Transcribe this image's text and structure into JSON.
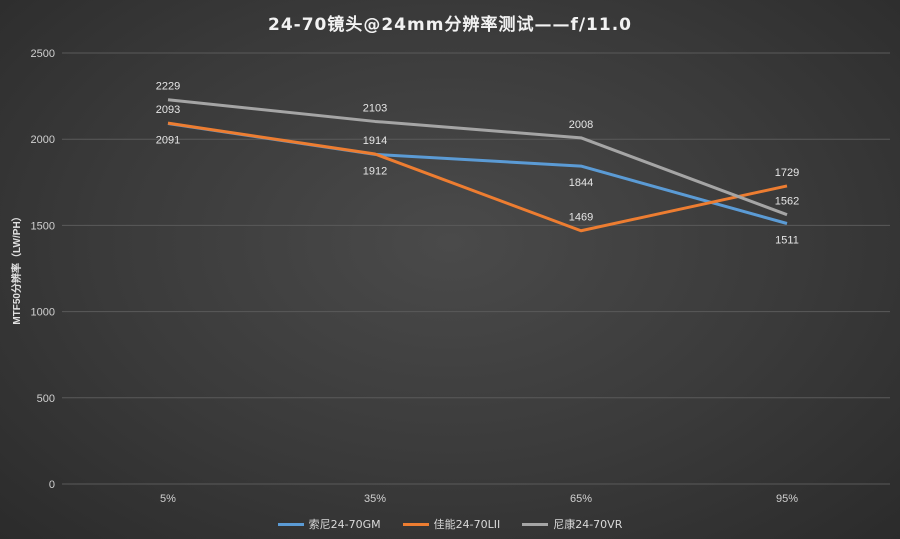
{
  "chart_data": {
    "type": "line",
    "title": "24-70镜头@24mm分辨率测试——f/11.0",
    "xlabel": "",
    "ylabel": "MTF50分辨率（LW/PH）",
    "categories": [
      "5%",
      "35%",
      "65%",
      "95%"
    ],
    "ylim": [
      0,
      2500
    ],
    "yticks": [
      0,
      500,
      1000,
      1500,
      2000,
      2500
    ],
    "grid": true,
    "legend_position": "bottom",
    "series": [
      {
        "name": "索尼24-70GM",
        "color": "#5b9bd5",
        "values": [
          2091,
          1912,
          1844,
          1511
        ]
      },
      {
        "name": "佳能24-70LII",
        "color": "#ed7d31",
        "values": [
          2093,
          1914,
          1469,
          1729
        ]
      },
      {
        "name": "尼康24-70VR",
        "color": "#a5a5a5",
        "values": [
          2229,
          2103,
          2008,
          1562
        ]
      }
    ]
  }
}
